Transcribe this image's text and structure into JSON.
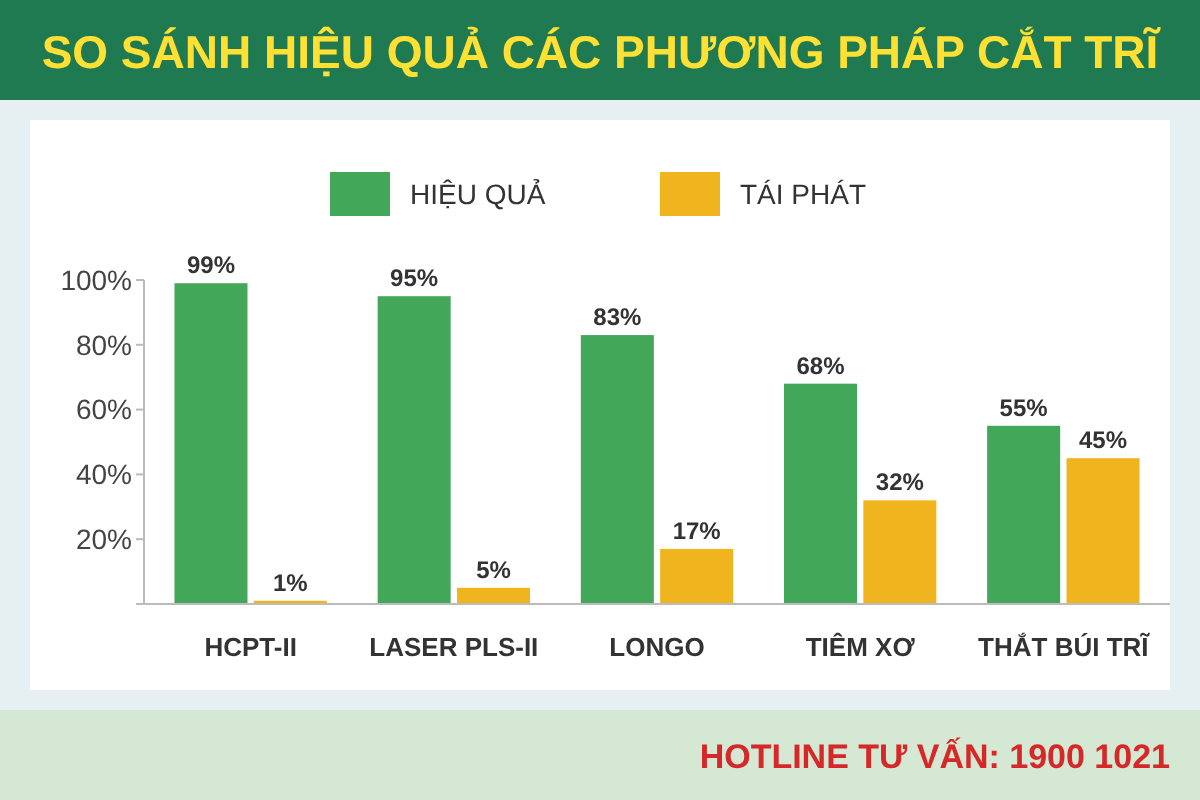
{
  "chart_data": {
    "type": "bar",
    "title": "SO SÁNH HIỆU QUẢ CÁC PHƯƠNG PHÁP CẮT TRĨ",
    "categories": [
      "HCPT-II",
      "LASER PLS-II",
      "LONGO",
      "TIÊM XƠ",
      "THẮT BÚI TRĨ"
    ],
    "series": [
      {
        "name": "HIỆU QUẢ",
        "color": "#43a75a",
        "values": [
          99,
          95,
          83,
          68,
          55
        ]
      },
      {
        "name": "TÁI PHÁT",
        "color": "#f0b51e",
        "values": [
          1,
          5,
          17,
          32,
          45
        ]
      }
    ],
    "ylim": [
      0,
      100
    ],
    "yticks": [
      {
        "value": 0,
        "label": null
      },
      {
        "value": 20,
        "label": "20%"
      },
      {
        "value": 40,
        "label": "40%"
      },
      {
        "value": 60,
        "label": "60%"
      },
      {
        "value": 80,
        "label": "80%"
      },
      {
        "value": 100,
        "label": "100%"
      }
    ],
    "value_labels": [
      [
        "99%",
        "95%",
        "83%",
        "68%",
        "55%"
      ],
      [
        "1%",
        "5%",
        "17%",
        "32%",
        "45%"
      ]
    ],
    "legend": "top",
    "grid": false,
    "annotations": [
      "HOTLINE TƯ VẤN: 1900 1021"
    ]
  }
}
